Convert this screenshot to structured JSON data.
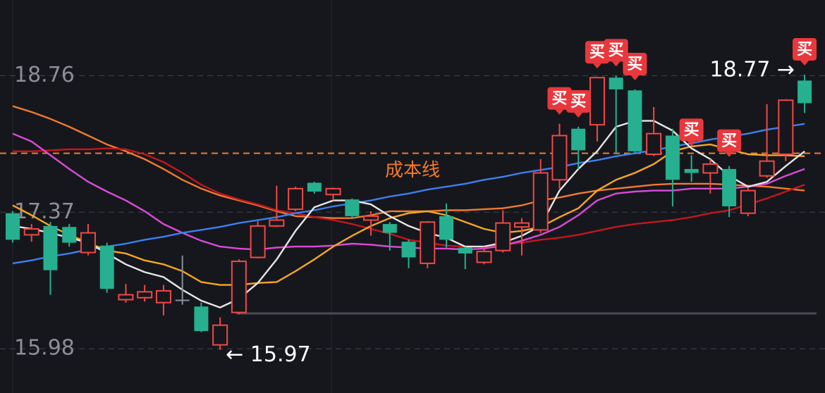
{
  "chart_data": {
    "type": "candlestick",
    "categories": [
      null,
      null,
      null,
      null,
      null,
      null,
      null,
      null,
      null,
      null,
      null,
      null,
      null,
      null,
      null,
      null,
      null,
      null,
      null,
      null,
      null,
      null,
      null,
      null,
      null,
      null,
      null,
      null,
      null,
      null,
      null,
      null,
      null,
      null,
      null,
      null,
      null,
      null,
      null,
      null,
      null,
      null,
      null
    ],
    "open": [
      17.36,
      17.14,
      17.23,
      17.22,
      16.96,
      17.03,
      16.48,
      16.5,
      16.45,
      16.48,
      16.41,
      16.02,
      16.35,
      16.91,
      17.23,
      17.4,
      17.67,
      17.55,
      17.5,
      17.29,
      17.25,
      17.07,
      16.85,
      17.33,
      17.01,
      16.86,
      16.98,
      17.22,
      17.19,
      17.7,
      18.22,
      18.26,
      18.74,
      18.61,
      17.96,
      18.15,
      17.81,
      17.77,
      17.81,
      17.36,
      17.74,
      17.96,
      18.71
    ],
    "high": [
      17.38,
      17.25,
      17.27,
      17.25,
      17.25,
      17.06,
      16.64,
      16.63,
      16.63,
      16.93,
      16.45,
      16.3,
      16.89,
      17.28,
      17.64,
      17.63,
      17.68,
      17.62,
      17.51,
      17.38,
      17.27,
      17.09,
      17.28,
      17.46,
      17.02,
      17.02,
      17.39,
      17.31,
      17.91,
      18.27,
      18.24,
      18.74,
      18.76,
      18.62,
      18.44,
      18.22,
      17.95,
      17.91,
      17.84,
      17.62,
      18.47,
      18.52,
      18.77
    ],
    "low": [
      17.06,
      17.07,
      16.53,
      17.02,
      16.93,
      16.55,
      16.45,
      16.46,
      16.32,
      16.43,
      16.15,
      15.97,
      16.33,
      16.9,
      17.22,
      17.38,
      17.56,
      17.49,
      17.31,
      17.13,
      16.98,
      16.8,
      16.8,
      17.01,
      16.79,
      16.84,
      16.96,
      16.93,
      17.16,
      17.61,
      17.81,
      18.09,
      17.96,
      17.96,
      17.94,
      17.43,
      17.68,
      17.56,
      17.32,
      17.33,
      17.72,
      17.89,
      18.38
    ],
    "close": [
      17.09,
      17.2,
      16.78,
      17.06,
      17.16,
      16.59,
      16.53,
      16.56,
      16.57,
      16.48,
      16.16,
      16.22,
      16.87,
      17.23,
      17.29,
      17.61,
      17.58,
      17.61,
      17.33,
      17.33,
      17.16,
      16.91,
      17.27,
      17.09,
      16.95,
      16.97,
      17.26,
      17.26,
      17.77,
      18.15,
      18.0,
      18.74,
      18.62,
      17.99,
      18.17,
      17.7,
      17.77,
      17.86,
      17.43,
      17.59,
      17.89,
      18.51,
      18.48
    ],
    "up_color": "#f04848",
    "down_color": "#26b08f",
    "flat_color": "#8a8f9a",
    "series": [
      {
        "color": "#f07a30",
        "values": [
          18.45,
          18.39,
          18.32,
          18.24,
          18.15,
          18.06,
          17.99,
          17.91,
          17.81,
          17.7,
          17.61,
          17.54,
          17.49,
          17.44,
          17.38,
          17.33,
          17.32,
          17.31,
          17.31,
          17.34,
          17.38,
          17.38,
          17.38,
          17.39,
          17.39,
          17.4,
          17.41,
          17.44,
          17.49,
          17.52,
          17.56,
          17.59,
          17.61,
          17.63,
          17.65,
          17.66,
          17.66,
          17.66,
          17.65,
          17.64,
          17.63,
          17.61,
          17.59
        ]
      },
      {
        "color": "#c0181e",
        "values": [
          17.99,
          17.99,
          18.0,
          18.01,
          18.01,
          18.02,
          18.01,
          17.96,
          17.88,
          17.77,
          17.65,
          17.56,
          17.5,
          17.45,
          17.39,
          17.36,
          17.32,
          17.29,
          17.25,
          17.2,
          17.15,
          17.09,
          17.06,
          17.03,
          17.02,
          17.02,
          17.04,
          17.06,
          17.09,
          17.11,
          17.14,
          17.18,
          17.22,
          17.25,
          17.27,
          17.29,
          17.32,
          17.36,
          17.39,
          17.45,
          17.51,
          17.58,
          17.65
        ]
      },
      {
        "color": "#d94bd6",
        "values": [
          18.17,
          18.09,
          17.95,
          17.81,
          17.68,
          17.58,
          17.49,
          17.38,
          17.25,
          17.16,
          17.08,
          17.02,
          17.0,
          16.99,
          17.01,
          17.02,
          17.02,
          17.03,
          17.05,
          17.04,
          17.02,
          17.01,
          17.0,
          17.0,
          16.99,
          17.0,
          17.03,
          17.08,
          17.14,
          17.22,
          17.34,
          17.49,
          17.56,
          17.58,
          17.59,
          17.59,
          17.61,
          17.61,
          17.61,
          17.63,
          17.66,
          17.74,
          17.81
        ]
      },
      {
        "color": "#3d7ff0",
        "values": [
          16.85,
          16.88,
          16.92,
          16.95,
          16.99,
          17.02,
          17.05,
          17.09,
          17.12,
          17.16,
          17.19,
          17.22,
          17.26,
          17.29,
          17.32,
          17.36,
          17.39,
          17.43,
          17.46,
          17.49,
          17.53,
          17.56,
          17.6,
          17.63,
          17.66,
          17.7,
          17.73,
          17.77,
          17.8,
          17.83,
          17.87,
          17.9,
          17.94,
          17.97,
          18.0,
          18.04,
          18.07,
          18.11,
          18.14,
          18.17,
          18.21,
          18.24,
          18.27
        ]
      },
      {
        "color": "#f5a623",
        "values": [
          17.44,
          17.34,
          17.23,
          17.14,
          17.06,
          16.98,
          16.95,
          16.88,
          16.84,
          16.77,
          16.66,
          16.63,
          16.63,
          16.65,
          16.66,
          16.77,
          16.89,
          17.02,
          17.13,
          17.23,
          17.31,
          17.36,
          17.38,
          17.34,
          17.27,
          17.2,
          17.16,
          17.18,
          17.22,
          17.32,
          17.41,
          17.59,
          17.7,
          17.77,
          17.86,
          17.99,
          18.04,
          18.06,
          18.01,
          17.96,
          17.95,
          17.95,
          17.94
        ]
      },
      {
        "color": "#e6e6e6",
        "values": [
          17.23,
          17.2,
          17.16,
          17.11,
          17.06,
          16.95,
          16.84,
          16.76,
          16.71,
          16.58,
          16.47,
          16.4,
          16.49,
          16.65,
          16.89,
          17.18,
          17.42,
          17.49,
          17.49,
          17.45,
          17.33,
          17.23,
          17.16,
          17.11,
          17.02,
          17.02,
          17.06,
          17.13,
          17.23,
          17.59,
          17.81,
          17.99,
          18.24,
          18.3,
          18.3,
          18.2,
          18.02,
          17.91,
          17.74,
          17.63,
          17.68,
          17.84,
          17.99
        ]
      }
    ],
    "signals": [
      null,
      null,
      null,
      null,
      null,
      null,
      null,
      null,
      null,
      null,
      null,
      null,
      null,
      null,
      null,
      null,
      null,
      null,
      null,
      null,
      null,
      null,
      null,
      null,
      null,
      null,
      null,
      null,
      null,
      "买",
      "买",
      "买",
      "买",
      "买",
      null,
      null,
      "买",
      null,
      "买",
      null,
      null,
      null,
      "买"
    ],
    "signal_color": "#e8383d",
    "cost_line": 17.97,
    "cost_line_label": "成本线",
    "cost_line_color": "#f07a30",
    "support_line": 16.34,
    "max_label": "18.77 →",
    "min_label": "← 15.97",
    "ylim": [
      15.53,
      19.53
    ],
    "yticks": [
      15.98,
      17.37,
      18.76
    ],
    "grid": true
  }
}
